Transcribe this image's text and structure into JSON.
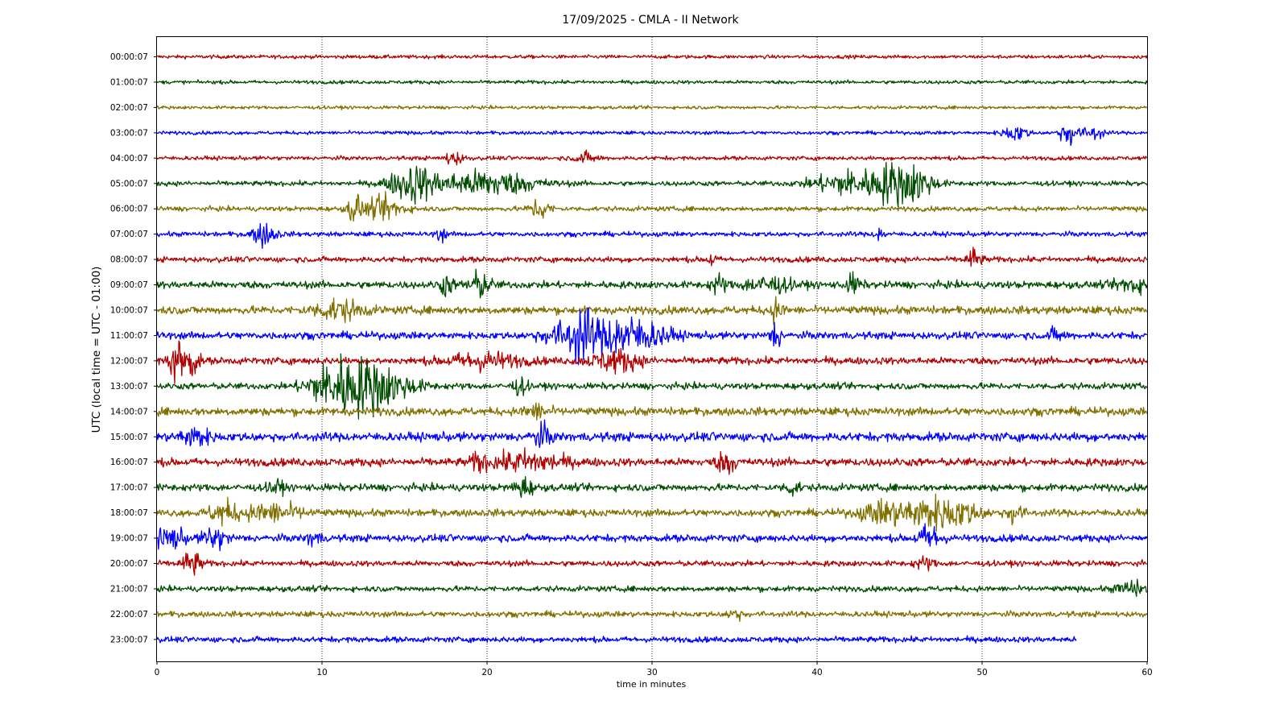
{
  "chart_data": {
    "type": "line",
    "title": "17/09/2025 - CMLA - II Network",
    "xlabel": "time in minutes",
    "ylabel": "UTC (local time = UTC - 01:00)",
    "xlim": [
      0,
      60
    ],
    "xticks": [
      0,
      10,
      20,
      30,
      40,
      50,
      60
    ],
    "grid": "vertical dotted lines at x ticks",
    "colors": [
      "#b00000",
      "#004d00",
      "#807000",
      "#0000ff"
    ],
    "series": [
      {
        "name": "00:00:07",
        "amplitude": 0.22,
        "end": 60,
        "events": []
      },
      {
        "name": "01:00:07",
        "amplitude": 0.22,
        "end": 60,
        "events": []
      },
      {
        "name": "02:00:07",
        "amplitude": 0.2,
        "end": 60,
        "events": []
      },
      {
        "name": "03:00:07",
        "amplitude": 0.22,
        "end": 60,
        "events": [
          [
            52,
            1.0,
            0.5
          ],
          [
            55.3,
            1.5,
            0.4
          ],
          [
            56.8,
            0.9,
            0.4
          ]
        ]
      },
      {
        "name": "04:00:07",
        "amplitude": 0.25,
        "end": 60,
        "events": [
          [
            18,
            0.8,
            0.4
          ],
          [
            26,
            0.6,
            0.5
          ]
        ]
      },
      {
        "name": "05:00:07",
        "amplitude": 0.3,
        "end": 60,
        "events": [
          [
            15.5,
            2.2,
            1.0
          ],
          [
            20,
            1.6,
            2.0
          ],
          [
            42,
            1.6,
            1.5
          ],
          [
            44.5,
            1.9,
            0.8
          ],
          [
            46,
            1.9,
            0.8
          ]
        ]
      },
      {
        "name": "06:00:07",
        "amplitude": 0.3,
        "end": 60,
        "events": [
          [
            12,
            1.8,
            0.3
          ],
          [
            13.8,
            1.4,
            0.8
          ],
          [
            23.2,
            1.4,
            0.4
          ]
        ]
      },
      {
        "name": "07:00:07",
        "amplitude": 0.3,
        "end": 60,
        "events": [
          [
            6.5,
            1.4,
            0.5
          ],
          [
            17.2,
            0.9,
            0.2
          ],
          [
            43.8,
            0.9,
            0.2
          ]
        ]
      },
      {
        "name": "08:00:07",
        "amplitude": 0.35,
        "end": 60,
        "events": [
          [
            33.6,
            0.9,
            0.2
          ],
          [
            49.5,
            1.3,
            0.3
          ]
        ]
      },
      {
        "name": "09:00:07",
        "amplitude": 0.45,
        "end": 60,
        "events": [
          [
            17.5,
            1.2,
            0.3
          ],
          [
            19.5,
            1.5,
            0.5
          ],
          [
            34,
            1.2,
            0.3
          ],
          [
            37,
            1.0,
            1.0
          ],
          [
            42.2,
            1.2,
            0.3
          ],
          [
            59,
            1.0,
            0.6
          ]
        ]
      },
      {
        "name": "10:00:07",
        "amplitude": 0.5,
        "end": 60,
        "events": [
          [
            11,
            1.2,
            1.0
          ],
          [
            37.5,
            1.2,
            0.3
          ]
        ]
      },
      {
        "name": "11:00:07",
        "amplitude": 0.45,
        "end": 60,
        "events": [
          [
            24.8,
            1.5,
            1.0
          ],
          [
            25.7,
            2.3,
            0.4
          ],
          [
            27.8,
            2.4,
            1.2
          ],
          [
            30,
            1.0,
            1.0
          ],
          [
            37.5,
            2.0,
            0.2
          ],
          [
            54.5,
            0.8,
            0.3
          ]
        ]
      },
      {
        "name": "12:00:07",
        "amplitude": 0.45,
        "end": 60,
        "events": [
          [
            1.2,
            3.0,
            0.3
          ],
          [
            2.1,
            2.0,
            0.3
          ],
          [
            19.8,
            1.0,
            1.5
          ],
          [
            27.8,
            1.3,
            1.0
          ]
        ]
      },
      {
        "name": "13:00:07",
        "amplitude": 0.4,
        "end": 60,
        "events": [
          [
            10,
            2.0,
            0.8
          ],
          [
            11.2,
            2.8,
            0.6
          ],
          [
            12.2,
            2.0,
            0.5
          ],
          [
            13.2,
            2.6,
            0.6
          ],
          [
            14.5,
            1.4,
            1.0
          ],
          [
            22,
            1.0,
            0.3
          ]
        ]
      },
      {
        "name": "14:00:07",
        "amplitude": 0.5,
        "end": 60,
        "events": [
          [
            23,
            0.9,
            0.5
          ]
        ]
      },
      {
        "name": "15:00:07",
        "amplitude": 0.55,
        "end": 60,
        "events": [
          [
            2.3,
            1.2,
            0.6
          ],
          [
            23.3,
            1.2,
            0.4
          ]
        ]
      },
      {
        "name": "16:00:07",
        "amplitude": 0.5,
        "end": 60,
        "events": [
          [
            19.5,
            1.1,
            0.3
          ],
          [
            22.5,
            1.2,
            1.5
          ],
          [
            34.5,
            1.3,
            0.4
          ]
        ]
      },
      {
        "name": "17:00:07",
        "amplitude": 0.45,
        "end": 60,
        "events": [
          [
            7.2,
            0.9,
            0.3
          ],
          [
            22.2,
            1.2,
            0.4
          ],
          [
            38.5,
            0.9,
            0.3
          ]
        ]
      },
      {
        "name": "18:00:07",
        "amplitude": 0.45,
        "end": 60,
        "events": [
          [
            4,
            1.3,
            0.6
          ],
          [
            7,
            1.1,
            1.2
          ],
          [
            44,
            1.3,
            1.0
          ],
          [
            46.5,
            1.6,
            1.0
          ],
          [
            48.5,
            1.4,
            1.0
          ],
          [
            52,
            1.4,
            0.3
          ]
        ]
      },
      {
        "name": "19:00:07",
        "amplitude": 0.45,
        "end": 60,
        "events": [
          [
            0.8,
            1.3,
            0.6
          ],
          [
            3.5,
            1.3,
            0.5
          ],
          [
            9.5,
            0.9,
            0.3
          ],
          [
            46.8,
            1.6,
            0.5
          ]
        ]
      },
      {
        "name": "20:00:07",
        "amplitude": 0.35,
        "end": 60,
        "events": [
          [
            2.1,
            1.5,
            0.4
          ],
          [
            46.5,
            0.7,
            0.4
          ]
        ]
      },
      {
        "name": "21:00:07",
        "amplitude": 0.35,
        "end": 60,
        "events": [
          [
            59,
            0.9,
            0.6
          ]
        ]
      },
      {
        "name": "22:00:07",
        "amplitude": 0.35,
        "end": 60,
        "events": [
          [
            35,
            0.7,
            0.3
          ]
        ]
      },
      {
        "name": "23:00:07",
        "amplitude": 0.35,
        "end": 55.7,
        "events": []
      }
    ]
  }
}
